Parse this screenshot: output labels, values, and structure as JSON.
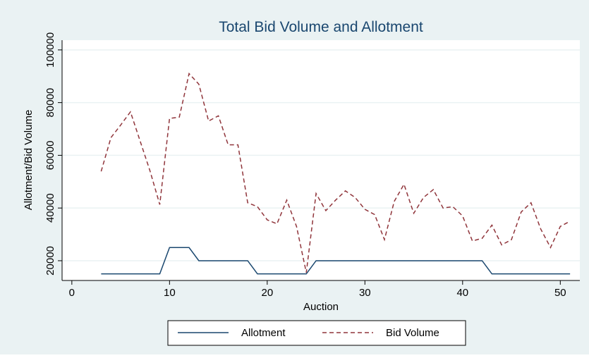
{
  "chart_data": {
    "type": "line",
    "title": "Total Bid Volume and Allotment",
    "x_label": "Auction",
    "y_label": "Allotment/Bid Volume",
    "x": [
      3,
      4,
      5,
      6,
      7,
      8,
      9,
      10,
      11,
      12,
      13,
      14,
      15,
      16,
      17,
      18,
      19,
      20,
      21,
      22,
      23,
      24,
      25,
      26,
      27,
      28,
      29,
      30,
      31,
      32,
      33,
      34,
      35,
      36,
      37,
      38,
      39,
      40,
      41,
      42,
      43,
      44,
      45,
      46,
      47,
      48,
      49,
      50,
      51
    ],
    "series": [
      {
        "name": "Allotment",
        "color": "#1a476f",
        "dash": false,
        "values": [
          15000,
          15000,
          15000,
          15000,
          15000,
          15000,
          15000,
          25000,
          25000,
          25000,
          20000,
          20000,
          20000,
          20000,
          20000,
          20000,
          15000,
          15000,
          15000,
          15000,
          15000,
          15000,
          20000,
          20000,
          20000,
          20000,
          20000,
          20000,
          20000,
          20000,
          20000,
          20000,
          20000,
          20000,
          20000,
          20000,
          20000,
          20000,
          20000,
          20000,
          15000,
          15000,
          15000,
          15000,
          15000,
          15000,
          15000,
          15000,
          15000
        ]
      },
      {
        "name": "Bid Volume",
        "color": "#90353b",
        "dash": true,
        "values": [
          53900,
          66700,
          71500,
          76500,
          65300,
          54100,
          41300,
          74000,
          74500,
          91000,
          87000,
          73000,
          75000,
          64000,
          64000,
          42000,
          40500,
          35500,
          34000,
          43000,
          33000,
          15500,
          45500,
          39000,
          43000,
          46500,
          44000,
          39500,
          37500,
          28000,
          42500,
          49000,
          38000,
          44000,
          47000,
          40000,
          40500,
          37000,
          27500,
          28500,
          33500,
          26000,
          28000,
          38500,
          42000,
          32000,
          25000,
          33000,
          35000
        ]
      }
    ],
    "xlim": [
      -1,
      52
    ],
    "xticks": [
      0,
      10,
      20,
      30,
      40,
      50
    ],
    "ylim": [
      12500,
      103700
    ],
    "yticks": [
      20000,
      40000,
      60000,
      80000,
      100000
    ],
    "grid": true
  }
}
